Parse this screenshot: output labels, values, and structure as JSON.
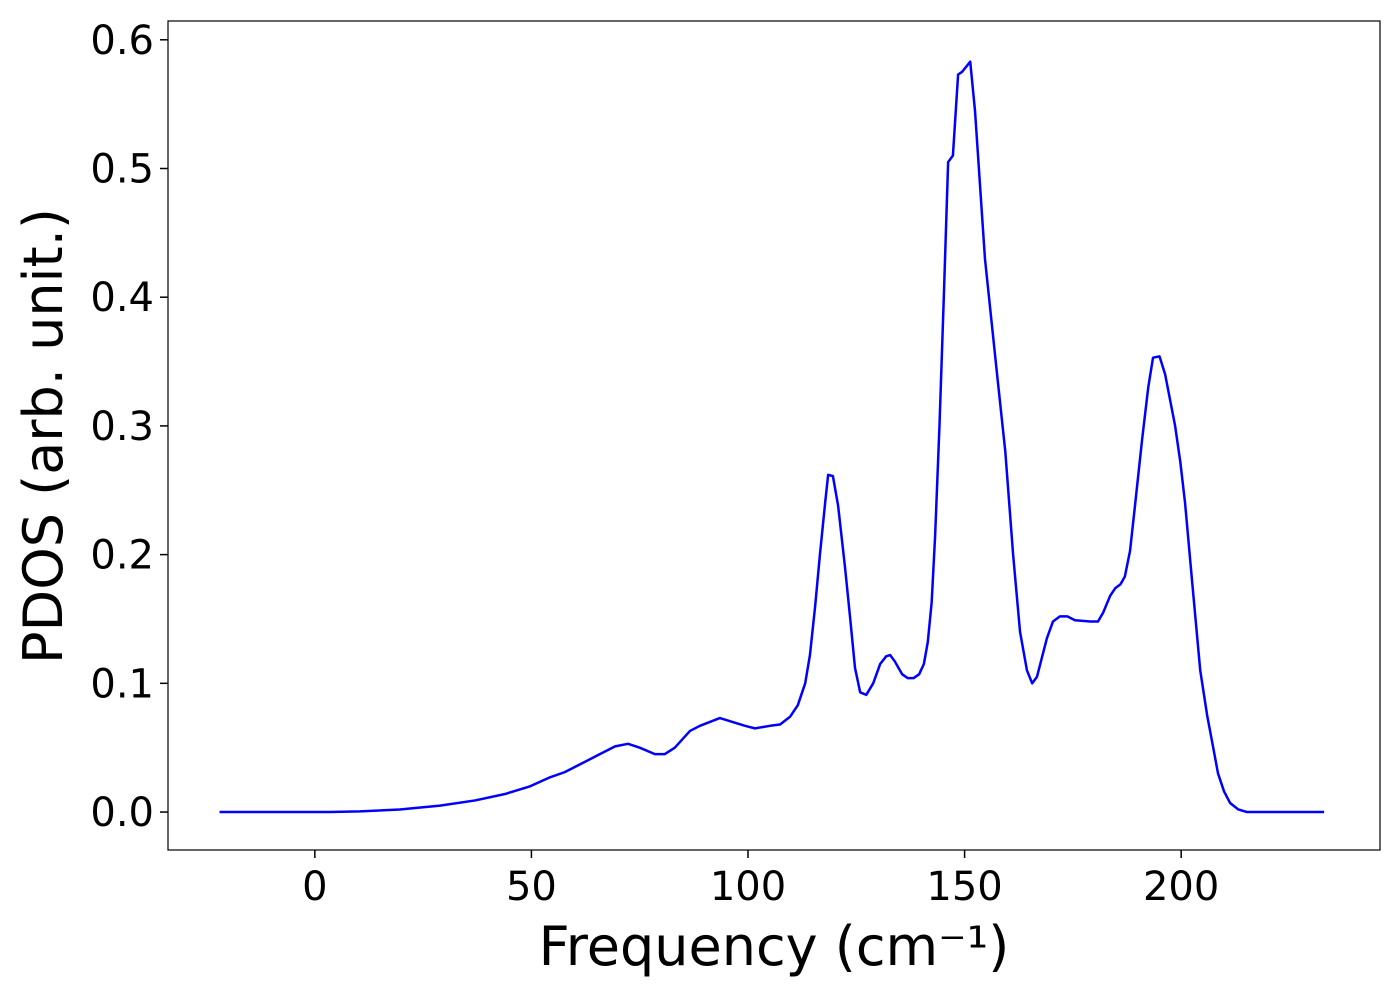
{
  "chart_data": {
    "type": "line",
    "xlabel": "Frequency (cm⁻¹)",
    "ylabel": "PDOS (arb. unit.)",
    "x": [
      -22,
      0,
      3.5,
      10.4,
      19.6,
      28.9,
      37,
      43.9,
      49.7,
      54.3,
      57.7,
      61.2,
      65.8,
      69.3,
      72.3,
      75,
      78.5,
      80.8,
      83.1,
      86.6,
      88.9,
      93.5,
      99.3,
      101.6,
      105.1,
      107.4,
      109.7,
      111.5,
      113.2,
      114.3,
      115.5,
      116.6,
      117.8,
      118.5,
      119.6,
      120.8,
      122.4,
      123.6,
      124.7,
      125.9,
      127.3,
      128.9,
      130.5,
      131.9,
      132.8,
      133.9,
      135.6,
      136.9,
      138.2,
      139.5,
      140.6,
      141.5,
      142.4,
      143.2,
      144.2,
      145.2,
      146.2,
      147.3,
      148.5,
      149.4,
      151.3,
      152.4,
      154.7,
      157.5,
      159.4,
      161.2,
      162.8,
      164.4,
      165.6,
      166.7,
      169,
      170.4,
      172,
      173.7,
      175.5,
      179,
      180.8,
      182,
      183.6,
      184.8,
      186,
      187,
      188.2,
      189.4,
      191,
      192.4,
      193.5,
      195,
      196.3,
      198.6,
      199.8,
      200.9,
      202.5,
      204.4,
      206,
      207.4,
      208.5,
      209.9,
      211.3,
      213.2,
      215.2,
      233
    ],
    "series": [
      {
        "name": "PDOS",
        "color": "#0000ff",
        "values": [
          0,
          0,
          0,
          0.0005,
          0.002,
          0.005,
          0.009,
          0.014,
          0.02,
          0.027,
          0.031,
          0.037,
          0.045,
          0.051,
          0.053,
          0.05,
          0.045,
          0.045,
          0.05,
          0.063,
          0.067,
          0.073,
          0.067,
          0.065,
          0.067,
          0.068,
          0.074,
          0.083,
          0.1,
          0.122,
          0.16,
          0.2,
          0.24,
          0.262,
          0.261,
          0.238,
          0.19,
          0.15,
          0.112,
          0.093,
          0.091,
          0.1,
          0.115,
          0.121,
          0.122,
          0.117,
          0.107,
          0.104,
          0.104,
          0.107,
          0.115,
          0.132,
          0.163,
          0.215,
          0.3,
          0.4,
          0.505,
          0.51,
          0.573,
          0.575,
          0.583,
          0.545,
          0.43,
          0.34,
          0.28,
          0.2,
          0.14,
          0.11,
          0.1,
          0.105,
          0.135,
          0.148,
          0.152,
          0.152,
          0.149,
          0.148,
          0.148,
          0.155,
          0.168,
          0.174,
          0.177,
          0.183,
          0.203,
          0.24,
          0.29,
          0.33,
          0.353,
          0.354,
          0.34,
          0.3,
          0.272,
          0.24,
          0.18,
          0.11,
          0.075,
          0.05,
          0.03,
          0.016,
          0.007,
          0.002,
          0,
          0
        ]
      }
    ],
    "xlim": [
      -33.9,
      245.9
    ],
    "xticks": [
      0,
      50,
      100,
      150,
      200
    ],
    "ylim": [
      -0.0295,
      0.6146
    ],
    "yticks": [
      {
        "value": 0,
        "label": "0.0"
      },
      0.1,
      0.2,
      0.3,
      0.4,
      0.5,
      0.6
    ],
    "grid": false
  }
}
